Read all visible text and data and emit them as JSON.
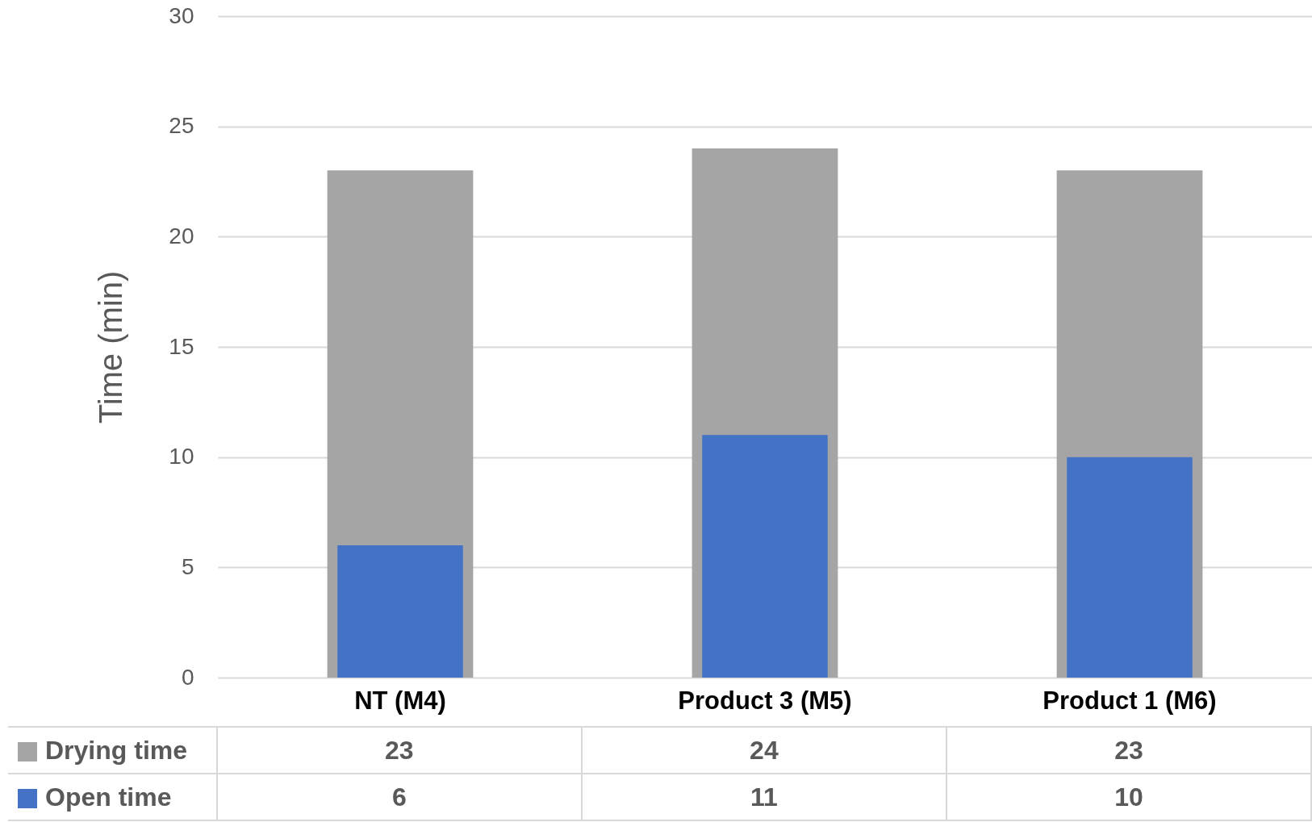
{
  "chart_data": {
    "type": "bar",
    "ylabel": "Time (min)",
    "categories": [
      "NT (M4)",
      "Product 3    (M5)",
      "Product 1    (M6)"
    ],
    "series": [
      {
        "name": "Drying time",
        "color": "#a5a5a5",
        "values": [
          23,
          24,
          23
        ]
      },
      {
        "name": "Open time",
        "color": "#4472c4",
        "values": [
          6,
          11,
          10
        ]
      }
    ],
    "ylim": [
      0,
      30
    ],
    "yticks": [
      0,
      5,
      10,
      15,
      20,
      25,
      30
    ],
    "grid": "y",
    "data_labels": true,
    "legend": "bottom"
  }
}
